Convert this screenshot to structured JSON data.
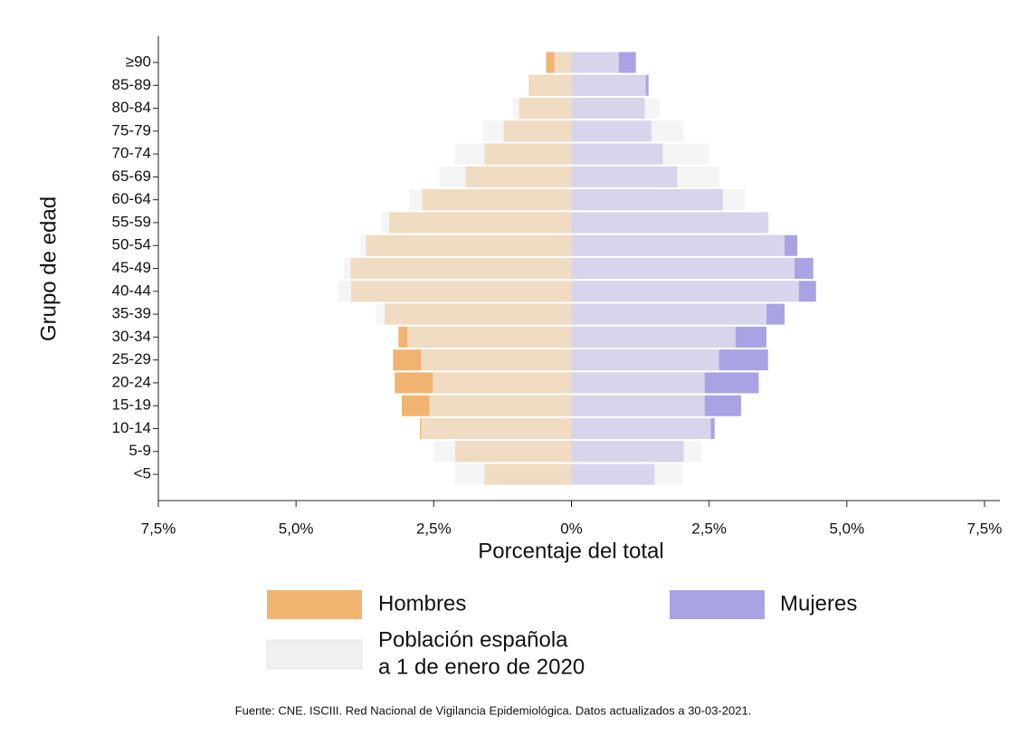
{
  "chart_data": {
    "type": "pyramid",
    "xlabel": "Porcentaje del total",
    "ylabel": "Grupo de edad",
    "source": "Fuente: CNE. ISCIII. Red Nacional de Vigilancia Epidemiológica. Datos actualizados a 30-03-2021.",
    "categories": [
      "≥90",
      "85-89",
      "80-84",
      "75-79",
      "70-74",
      "65-69",
      "60-64",
      "55-59",
      "50-54",
      "45-49",
      "40-44",
      "35-39",
      "30-34",
      "25-29",
      "20-24",
      "15-19",
      "10-14",
      "5-9",
      "<5"
    ],
    "series": [
      {
        "name": "Hombres",
        "color": "#f0b470",
        "values": [
          -0.46,
          -0.77,
          -0.95,
          -1.23,
          -1.58,
          -1.92,
          -2.71,
          -3.31,
          -3.73,
          -4.01,
          -4.0,
          -3.39,
          -3.14,
          -3.24,
          -3.21,
          -3.08,
          -2.75,
          -2.11,
          -1.58
        ]
      },
      {
        "name": "Mujeres",
        "color": "#a9a3e3",
        "values": [
          1.17,
          1.4,
          1.33,
          1.45,
          1.66,
          1.92,
          2.75,
          3.57,
          4.1,
          4.39,
          4.44,
          3.87,
          3.54,
          3.57,
          3.4,
          3.08,
          2.6,
          2.04,
          1.51
        ]
      }
    ],
    "reference": {
      "name": [
        "Población española",
        "a 1 de enero de 2020"
      ],
      "color": "#f0f0f0",
      "values": [
        [
          -0.31,
          -0.76,
          -1.07,
          -1.61,
          -2.12,
          -2.4,
          -2.94,
          -3.45,
          -3.83,
          -4.13,
          -4.24,
          -3.55,
          -2.98,
          -2.73,
          -2.52,
          -2.58,
          -2.73,
          -2.5,
          -2.12
        ],
        [
          0.86,
          1.35,
          1.6,
          2.04,
          2.5,
          2.68,
          3.16,
          3.59,
          3.87,
          4.05,
          4.13,
          3.54,
          2.98,
          2.68,
          2.42,
          2.42,
          2.53,
          2.37,
          2.02
        ]
      ]
    },
    "xlim": [
      -7.5,
      7.5
    ],
    "xticks": [
      {
        "value": -7.5,
        "label": "7,5%"
      },
      {
        "value": -5,
        "label": "5,0%"
      },
      {
        "value": -2.5,
        "label": "2,5%"
      },
      {
        "value": 0,
        "label": "0%"
      },
      {
        "value": 2.5,
        "label": "2,5%"
      },
      {
        "value": 5,
        "label": "5,0%"
      },
      {
        "value": 7.5,
        "label": "7,5%"
      }
    ]
  }
}
